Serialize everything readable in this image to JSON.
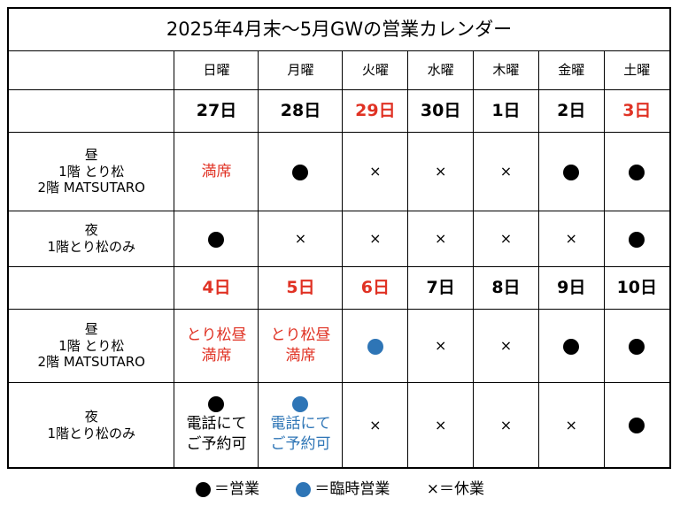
{
  "title": "2025年4月末～5月GWの営業カレンダー",
  "weekdays": [
    "日曜",
    "月曜",
    "火曜",
    "水曜",
    "木曜",
    "金曜",
    "土曜"
  ],
  "colors": {
    "holiday_red": "#e03224",
    "temporary_blue": "#2e75b6",
    "open_black": "#000000"
  },
  "rows": {
    "lunch_label": [
      "昼",
      "1階 とり松",
      "2階 MATSUTARO"
    ],
    "dinner_label": [
      "夜",
      "1階とり松のみ"
    ]
  },
  "weeks": [
    {
      "dates": [
        {
          "label": "27日",
          "holiday": false
        },
        {
          "label": "28日",
          "holiday": false
        },
        {
          "label": "29日",
          "holiday": true
        },
        {
          "label": "30日",
          "holiday": false
        },
        {
          "label": "1日",
          "holiday": false
        },
        {
          "label": "2日",
          "holiday": false
        },
        {
          "label": "3日",
          "holiday": true
        }
      ],
      "lunch": [
        {
          "type": "text",
          "lines": [
            "満席"
          ],
          "color": "red"
        },
        {
          "type": "open"
        },
        {
          "type": "closed",
          "symbol": "×"
        },
        {
          "type": "closed",
          "symbol": "×"
        },
        {
          "type": "closed",
          "symbol": "×"
        },
        {
          "type": "open"
        },
        {
          "type": "open"
        }
      ],
      "dinner": [
        {
          "type": "open"
        },
        {
          "type": "closed",
          "symbol": "×"
        },
        {
          "type": "closed",
          "symbol": "×"
        },
        {
          "type": "closed",
          "symbol": "×"
        },
        {
          "type": "closed",
          "symbol": "×"
        },
        {
          "type": "closed",
          "symbol": "×"
        },
        {
          "type": "open"
        }
      ]
    },
    {
      "dates": [
        {
          "label": "4日",
          "holiday": true
        },
        {
          "label": "5日",
          "holiday": true
        },
        {
          "label": "6日",
          "holiday": true
        },
        {
          "label": "7日",
          "holiday": false
        },
        {
          "label": "8日",
          "holiday": false
        },
        {
          "label": "9日",
          "holiday": false
        },
        {
          "label": "10日",
          "holiday": false
        }
      ],
      "lunch": [
        {
          "type": "text",
          "lines": [
            "とり松昼",
            "満席"
          ],
          "color": "red"
        },
        {
          "type": "text",
          "lines": [
            "とり松昼",
            "満席"
          ],
          "color": "red"
        },
        {
          "type": "temporary"
        },
        {
          "type": "closed",
          "symbol": "×"
        },
        {
          "type": "closed",
          "symbol": "×"
        },
        {
          "type": "open"
        },
        {
          "type": "open"
        }
      ],
      "dinner": [
        {
          "type": "open-note",
          "lines": [
            "電話にて",
            "ご予約可"
          ],
          "color": "black"
        },
        {
          "type": "temporary-note",
          "lines": [
            "電話にて",
            "ご予約可"
          ],
          "color": "blue"
        },
        {
          "type": "closed",
          "symbol": "×"
        },
        {
          "type": "closed",
          "symbol": "×"
        },
        {
          "type": "closed",
          "symbol": "×"
        },
        {
          "type": "closed",
          "symbol": "×"
        },
        {
          "type": "open"
        }
      ]
    }
  ],
  "legend": {
    "open": "＝営業",
    "temporary": "＝臨時営業",
    "closed": "×＝休業"
  }
}
